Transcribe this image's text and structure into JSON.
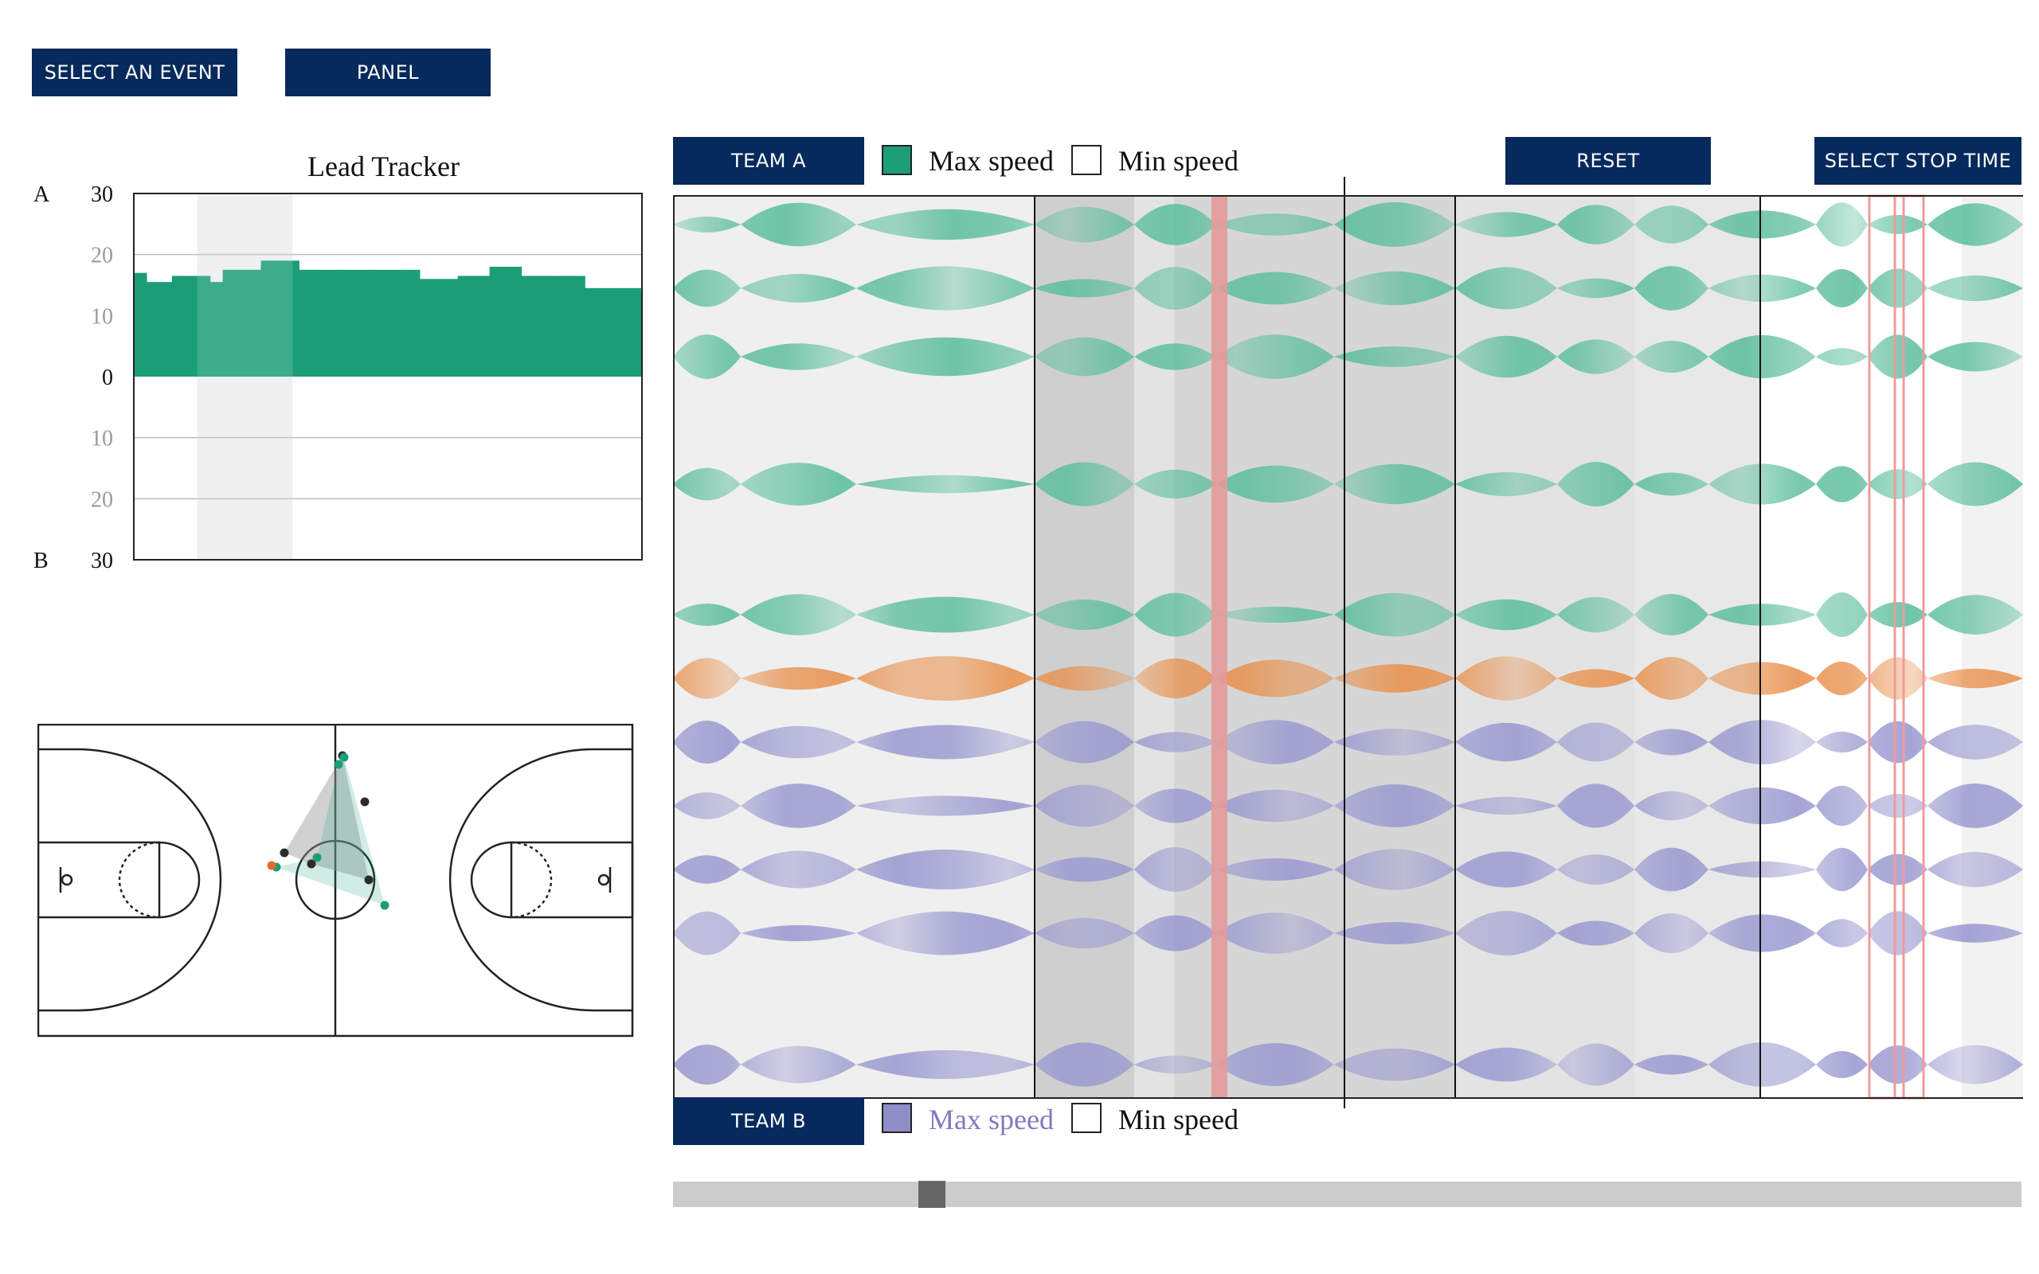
{
  "toolbar": {
    "select_event_label": "SELECT AN EVENT",
    "panel_label": "PANEL"
  },
  "colors": {
    "brand_navy": "#062a5c",
    "team_a": "#1b9e77",
    "team_a_light": "#7fcdb4",
    "team_b": "#8f8ec9",
    "highlight": "#e8924f",
    "marker": "#e9a3a3"
  },
  "lead_tracker": {
    "title": "Lead Tracker",
    "axis_labels": [
      {
        "text": "A",
        "value": "30",
        "side": "A"
      },
      {
        "text": "",
        "value": "20",
        "side": "A"
      },
      {
        "text": "",
        "value": "10",
        "side": "A"
      },
      {
        "text": "",
        "value": "0",
        "side": "zero"
      },
      {
        "text": "",
        "value": "10",
        "side": "B"
      },
      {
        "text": "",
        "value": "20",
        "side": "B"
      },
      {
        "text": "B",
        "value": "30",
        "side": "B"
      }
    ]
  },
  "chart_data": {
    "type": "bar",
    "title": "Lead Tracker",
    "xlabel": "",
    "ylabel": "",
    "ylim": [
      -30,
      30
    ],
    "ytick_labels": [
      "30",
      "20",
      "10",
      "0",
      "10",
      "20",
      "30"
    ],
    "grid": true,
    "values": [
      17,
      17,
      15.5,
      15.5,
      15.5,
      15.5,
      16.5,
      16.5,
      16.5,
      16.5,
      16.5,
      16.5,
      15.5,
      15.5,
      17.5,
      17.5,
      17.5,
      17.5,
      17.5,
      17.5,
      19,
      19,
      19,
      19,
      19,
      19,
      17.5,
      17.5,
      17.5,
      17.5,
      17.5,
      17.5,
      17.5,
      17.5,
      17.5,
      17.5,
      17.5,
      17.5,
      17.5,
      17.5,
      17.5,
      17.5,
      17.5,
      17.5,
      17.5,
      16,
      16,
      16,
      16,
      16,
      16,
      16.5,
      16.5,
      16.5,
      16.5,
      16.5,
      18,
      18,
      18,
      18,
      18,
      16.5,
      16.5,
      16.5,
      16.5,
      16.5,
      16.5,
      16.5,
      16.5,
      16.5,
      16.5,
      14.5,
      14.5,
      14.5,
      14.5,
      14.5,
      14.5,
      14.5,
      14.5,
      14.5
    ],
    "highlight_range": [
      10,
      25
    ]
  },
  "court": {
    "team_a_players": [
      [
        385,
        42
      ],
      [
        378,
        51
      ],
      [
        300,
        180
      ],
      [
        351,
        168
      ],
      [
        436,
        228
      ]
    ],
    "team_b_players": [
      [
        383,
        40
      ],
      [
        411,
        98
      ],
      [
        310,
        162
      ],
      [
        344,
        176
      ],
      [
        416,
        196
      ]
    ],
    "ball": [
      294,
      178
    ]
  },
  "streams": {
    "team_a_button": "TEAM A",
    "team_b_button": "TEAM B",
    "max_speed_label": "Max speed",
    "min_speed_label": "Min speed",
    "reset_label": "RESET",
    "select_stop_label": "SELECT STOP TIME",
    "row_colors": [
      "a",
      "a",
      "a",
      "a",
      "a",
      "h",
      "b",
      "b",
      "b",
      "b",
      "b"
    ],
    "timeline_position": 0.19
  }
}
